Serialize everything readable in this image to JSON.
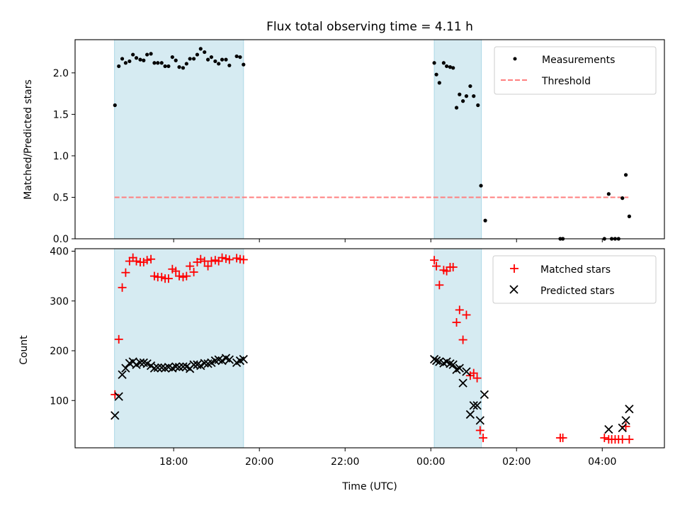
{
  "title": "Flux total observing time = 4.11 h",
  "chart_data": [
    {
      "type": "scatter",
      "ylabel": "Matched/Predicted stars",
      "xlabel": "",
      "ylim": [
        0,
        2.4
      ],
      "xlim_hours": [
        15.7,
        29.45
      ],
      "yticks": [
        0,
        0.5,
        1.0,
        1.5,
        2.0
      ],
      "ytick_labels": [
        "0.0",
        "0.5",
        "1.0",
        "1.5",
        "2.0"
      ],
      "threshold": {
        "value": 0.5,
        "x_start": 16.62,
        "x_end": 28.61,
        "color": "#ff7f7f"
      },
      "shaded_intervals": [
        [
          16.62,
          19.63
        ],
        [
          24.08,
          25.18
        ]
      ],
      "legend": {
        "position": "top-right",
        "items": [
          "Measurements",
          "Threshold"
        ]
      },
      "series": [
        {
          "name": "Measurements",
          "color": "#000000",
          "points": [
            [
              16.63,
              1.61
            ],
            [
              16.72,
              2.08
            ],
            [
              16.8,
              2.17
            ],
            [
              16.88,
              2.12
            ],
            [
              16.97,
              2.14
            ],
            [
              17.05,
              2.22
            ],
            [
              17.13,
              2.18
            ],
            [
              17.22,
              2.16
            ],
            [
              17.3,
              2.15
            ],
            [
              17.38,
              2.22
            ],
            [
              17.47,
              2.23
            ],
            [
              17.55,
              2.12
            ],
            [
              17.63,
              2.12
            ],
            [
              17.72,
              2.12
            ],
            [
              17.8,
              2.08
            ],
            [
              17.88,
              2.08
            ],
            [
              17.97,
              2.19
            ],
            [
              18.05,
              2.15
            ],
            [
              18.13,
              2.07
            ],
            [
              18.22,
              2.06
            ],
            [
              18.3,
              2.11
            ],
            [
              18.38,
              2.17
            ],
            [
              18.47,
              2.17
            ],
            [
              18.55,
              2.22
            ],
            [
              18.63,
              2.29
            ],
            [
              18.72,
              2.25
            ],
            [
              18.8,
              2.16
            ],
            [
              18.88,
              2.19
            ],
            [
              18.97,
              2.14
            ],
            [
              19.05,
              2.11
            ],
            [
              19.13,
              2.16
            ],
            [
              19.22,
              2.16
            ],
            [
              19.3,
              2.09
            ],
            [
              19.47,
              2.2
            ],
            [
              19.55,
              2.19
            ],
            [
              19.63,
              2.1
            ],
            [
              24.08,
              2.12
            ],
            [
              24.13,
              1.98
            ],
            [
              24.2,
              1.88
            ],
            [
              24.3,
              2.12
            ],
            [
              24.37,
              2.08
            ],
            [
              24.45,
              2.07
            ],
            [
              24.52,
              2.06
            ],
            [
              24.6,
              1.58
            ],
            [
              24.67,
              1.74
            ],
            [
              24.75,
              1.66
            ],
            [
              24.83,
              1.72
            ],
            [
              24.92,
              1.84
            ],
            [
              25.0,
              1.72
            ],
            [
              25.1,
              1.61
            ],
            [
              25.17,
              0.64
            ],
            [
              25.27,
              0.22
            ],
            [
              27.02,
              0.0
            ],
            [
              27.08,
              0.0
            ],
            [
              28.05,
              0.0
            ],
            [
              28.15,
              0.54
            ],
            [
              28.22,
              0.0
            ],
            [
              28.3,
              0.0
            ],
            [
              28.38,
              0.0
            ],
            [
              28.47,
              0.49
            ],
            [
              28.55,
              0.77
            ],
            [
              28.63,
              0.27
            ]
          ]
        }
      ]
    },
    {
      "type": "scatter",
      "ylabel": "Count",
      "xlabel": "Time (UTC)",
      "ylim": [
        5,
        405
      ],
      "xlim_hours": [
        15.7,
        29.45
      ],
      "yticks": [
        100,
        200,
        300,
        400
      ],
      "ytick_labels": [
        "100",
        "200",
        "300",
        "400"
      ],
      "xticks_hours": [
        18,
        20,
        22,
        24,
        26,
        28
      ],
      "xtick_labels": [
        "18:00",
        "20:00",
        "22:00",
        "00:00",
        "02:00",
        "04:00"
      ],
      "shaded_intervals": [
        [
          16.62,
          19.63
        ],
        [
          24.08,
          25.18
        ]
      ],
      "legend": {
        "position": "top-right",
        "items": [
          "Matched stars",
          "Predicted stars"
        ]
      },
      "series": [
        {
          "name": "Matched stars",
          "marker": "plus",
          "color": "#ff0000",
          "points": [
            [
              16.63,
              112
            ],
            [
              16.72,
              223
            ],
            [
              16.8,
              327
            ],
            [
              16.88,
              357
            ],
            [
              16.97,
              380
            ],
            [
              17.05,
              387
            ],
            [
              17.13,
              380
            ],
            [
              17.22,
              378
            ],
            [
              17.3,
              378
            ],
            [
              17.38,
              382
            ],
            [
              17.47,
              384
            ],
            [
              17.55,
              350
            ],
            [
              17.63,
              348
            ],
            [
              17.72,
              348
            ],
            [
              17.8,
              345
            ],
            [
              17.88,
              345
            ],
            [
              17.97,
              364
            ],
            [
              18.05,
              360
            ],
            [
              18.13,
              350
            ],
            [
              18.22,
              348
            ],
            [
              18.3,
              350
            ],
            [
              18.38,
              370
            ],
            [
              18.47,
              358
            ],
            [
              18.55,
              378
            ],
            [
              18.63,
              384
            ],
            [
              18.72,
              380
            ],
            [
              18.8,
              370
            ],
            [
              18.88,
              380
            ],
            [
              18.97,
              382
            ],
            [
              19.05,
              380
            ],
            [
              19.13,
              387
            ],
            [
              19.22,
              385
            ],
            [
              19.3,
              383
            ],
            [
              19.47,
              386
            ],
            [
              19.55,
              384
            ],
            [
              19.63,
              383
            ],
            [
              24.08,
              382
            ],
            [
              24.13,
              370
            ],
            [
              24.2,
              332
            ],
            [
              24.3,
              362
            ],
            [
              24.37,
              360
            ],
            [
              24.45,
              368
            ],
            [
              24.52,
              368
            ],
            [
              24.6,
              257
            ],
            [
              24.67,
              282
            ],
            [
              24.75,
              222
            ],
            [
              24.83,
              272
            ],
            [
              24.92,
              150
            ],
            [
              25.0,
              155
            ],
            [
              25.08,
              145
            ],
            [
              25.15,
              40
            ],
            [
              25.22,
              25
            ],
            [
              27.02,
              25
            ],
            [
              27.08,
              25
            ],
            [
              28.05,
              25
            ],
            [
              28.15,
              22
            ],
            [
              28.22,
              22
            ],
            [
              28.3,
              22
            ],
            [
              28.38,
              22
            ],
            [
              28.47,
              22
            ],
            [
              28.55,
              48
            ],
            [
              28.63,
              22
            ]
          ]
        },
        {
          "name": "Predicted stars",
          "marker": "x",
          "color": "#000000",
          "points": [
            [
              16.63,
              70
            ],
            [
              16.72,
              108
            ],
            [
              16.8,
              152
            ],
            [
              16.88,
              165
            ],
            [
              16.97,
              175
            ],
            [
              17.05,
              178
            ],
            [
              17.13,
              172
            ],
            [
              17.22,
              176
            ],
            [
              17.3,
              176
            ],
            [
              17.38,
              174
            ],
            [
              17.47,
              170
            ],
            [
              17.55,
              165
            ],
            [
              17.63,
              166
            ],
            [
              17.72,
              166
            ],
            [
              17.8,
              165
            ],
            [
              17.88,
              167
            ],
            [
              17.97,
              165
            ],
            [
              18.05,
              168
            ],
            [
              18.13,
              167
            ],
            [
              18.22,
              168
            ],
            [
              18.3,
              168
            ],
            [
              18.38,
              164
            ],
            [
              18.47,
              172
            ],
            [
              18.55,
              172
            ],
            [
              18.63,
              170
            ],
            [
              18.72,
              175
            ],
            [
              18.8,
              174
            ],
            [
              18.88,
              176
            ],
            [
              18.97,
              180
            ],
            [
              19.05,
              182
            ],
            [
              19.13,
              180
            ],
            [
              19.22,
              185
            ],
            [
              19.3,
              182
            ],
            [
              19.47,
              176
            ],
            [
              19.55,
              180
            ],
            [
              19.63,
              183
            ],
            [
              24.08,
              183
            ],
            [
              24.13,
              180
            ],
            [
              24.2,
              178
            ],
            [
              24.3,
              175
            ],
            [
              24.37,
              178
            ],
            [
              24.45,
              174
            ],
            [
              24.52,
              172
            ],
            [
              24.6,
              162
            ],
            [
              24.67,
              165
            ],
            [
              24.75,
              135
            ],
            [
              24.83,
              158
            ],
            [
              24.92,
              72
            ],
            [
              25.0,
              90
            ],
            [
              25.08,
              90
            ],
            [
              25.15,
              60
            ],
            [
              25.25,
              112
            ],
            [
              28.15,
              42
            ],
            [
              28.47,
              45
            ],
            [
              28.55,
              60
            ],
            [
              28.63,
              83
            ]
          ]
        }
      ]
    }
  ]
}
